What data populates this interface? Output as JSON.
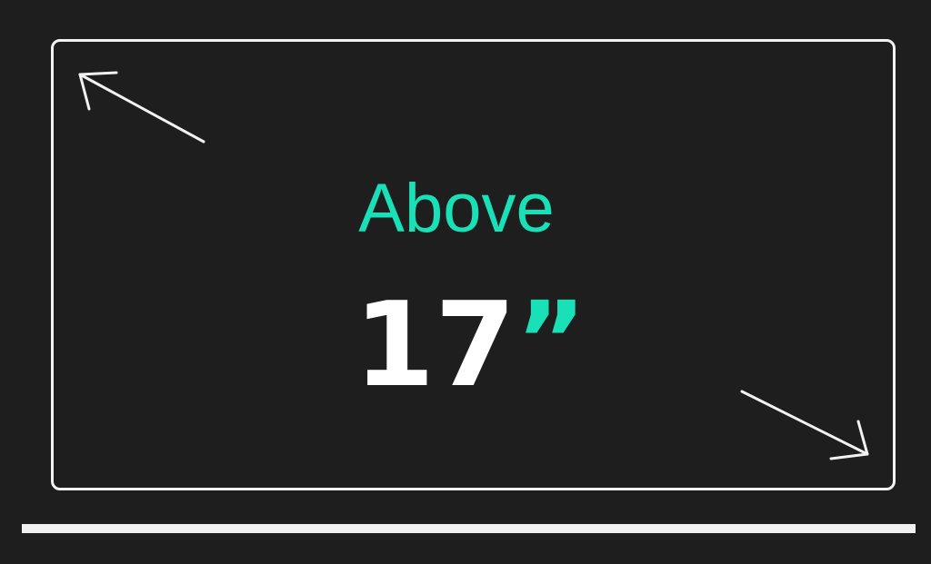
{
  "label": "Above",
  "size": {
    "number": "17",
    "unit": "”"
  },
  "icons": {
    "arrow_top_left": "arrow-up-left-icon",
    "arrow_bottom_right": "arrow-down-right-icon"
  },
  "colors": {
    "background": "#1e1e1e",
    "outline": "#f2f2f2",
    "accent": "#19e0b6",
    "text": "#ffffff"
  }
}
